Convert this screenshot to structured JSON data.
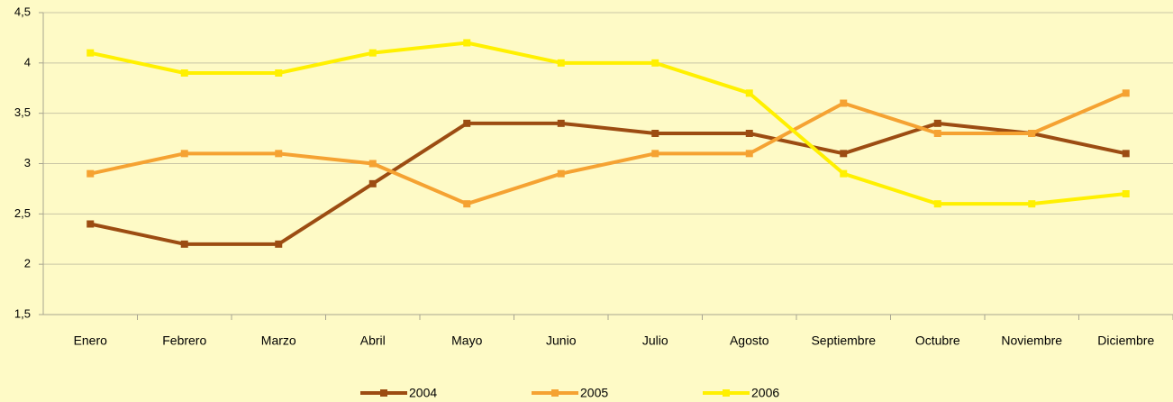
{
  "chart_data": {
    "type": "line",
    "categories": [
      "Enero",
      "Febrero",
      "Marzo",
      "Abril",
      "Mayo",
      "Junio",
      "Julio",
      "Agosto",
      "Septiembre",
      "Octubre",
      "Noviembre",
      "Diciembre"
    ],
    "series": [
      {
        "name": "2004",
        "color": "#9c4c12",
        "values": [
          2.4,
          2.2,
          2.2,
          2.8,
          3.4,
          3.4,
          3.3,
          3.3,
          3.1,
          3.4,
          3.3,
          3.1
        ]
      },
      {
        "name": "2005",
        "color": "#f5a232",
        "values": [
          2.9,
          3.1,
          3.1,
          3.0,
          2.6,
          2.9,
          3.1,
          3.1,
          3.6,
          3.3,
          3.3,
          3.7
        ]
      },
      {
        "name": "2006",
        "color": "#fff000",
        "values": [
          4.1,
          3.9,
          3.9,
          4.1,
          4.2,
          4.0,
          4.0,
          3.7,
          2.9,
          2.6,
          2.6,
          2.7
        ]
      }
    ],
    "ylim": [
      1.5,
      4.5
    ],
    "yticks": [
      {
        "value": 1.5,
        "label": "1,5"
      },
      2,
      {
        "value": 2.5,
        "label": "2,5"
      },
      3,
      {
        "value": 3.5,
        "label": "3,5"
      },
      4,
      {
        "value": 4.5,
        "label": "4,5"
      }
    ],
    "grid": true,
    "legend": "bottom"
  }
}
